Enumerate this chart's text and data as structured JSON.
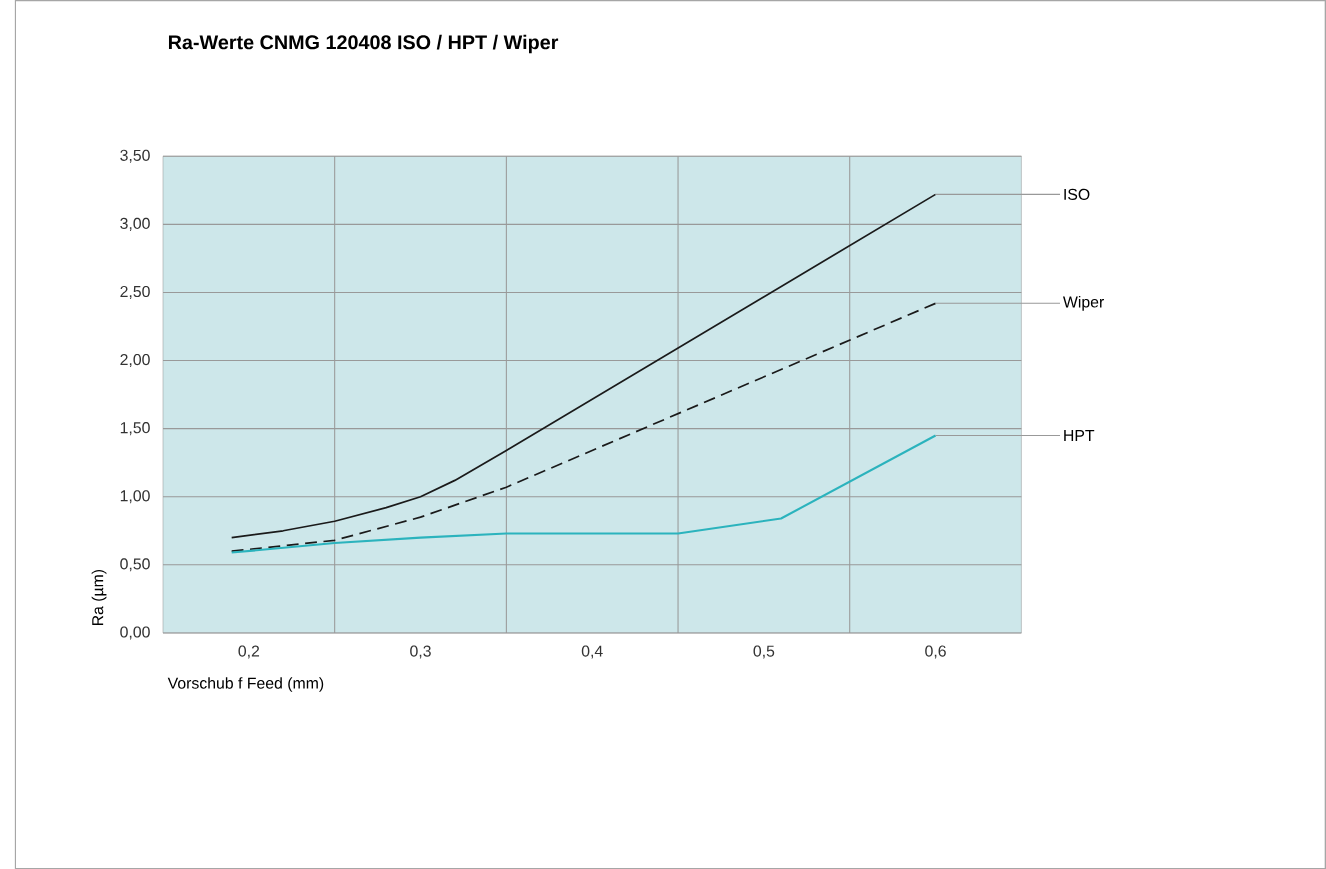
{
  "chart_data": {
    "type": "line",
    "title": "Ra-Werte CNMG 120408 ISO / HPT / Wiper",
    "xlabel": "Vorschub f Feed (mm)",
    "ylabel": "Ra (µm)",
    "xlim": [
      0.15,
      0.65
    ],
    "ylim": [
      0,
      3.5
    ],
    "xticks": [
      {
        "value": 0.2,
        "label": "0,2"
      },
      {
        "value": 0.25,
        "label": null
      },
      {
        "value": 0.3,
        "label": "0,3"
      },
      {
        "value": 0.35,
        "label": null
      },
      {
        "value": 0.4,
        "label": "0,4"
      },
      {
        "value": 0.45,
        "label": null
      },
      {
        "value": 0.5,
        "label": "0,5"
      },
      {
        "value": 0.55,
        "label": null
      },
      {
        "value": 0.6,
        "label": "0,6"
      }
    ],
    "yticks": [
      {
        "value": 0,
        "label": "0,00"
      },
      {
        "value": 0.5,
        "label": "0,50"
      },
      {
        "value": 1,
        "label": "1,00"
      },
      {
        "value": 1.5,
        "label": "1,50"
      },
      {
        "value": 2,
        "label": "2,00"
      },
      {
        "value": 2.5,
        "label": "2,50"
      },
      {
        "value": 3,
        "label": "3,00"
      },
      {
        "value": 3.5,
        "label": "3,50"
      }
    ],
    "grid": true,
    "marker": "none",
    "series": [
      {
        "name": "ISO",
        "color": "#1a1a1a",
        "line_style": "solid",
        "x": [
          0.19,
          0.22,
          0.25,
          0.28,
          0.3,
          0.32,
          0.35,
          0.6
        ],
        "values": [
          0.7,
          0.75,
          0.82,
          0.92,
          1.0,
          1.12,
          1.34,
          3.22
        ]
      },
      {
        "name": "Wiper",
        "color": "#1a1a1a",
        "line_style": "dashed",
        "x": [
          0.19,
          0.25,
          0.3,
          0.35,
          0.6
        ],
        "values": [
          0.6,
          0.68,
          0.85,
          1.07,
          2.42
        ]
      },
      {
        "name": "HPT",
        "color": "#2bb3bd",
        "line_style": "solid",
        "x": [
          0.19,
          0.25,
          0.3,
          0.35,
          0.45,
          0.51,
          0.6
        ],
        "values": [
          0.59,
          0.66,
          0.7,
          0.73,
          0.73,
          0.84,
          1.45
        ]
      }
    ]
  }
}
